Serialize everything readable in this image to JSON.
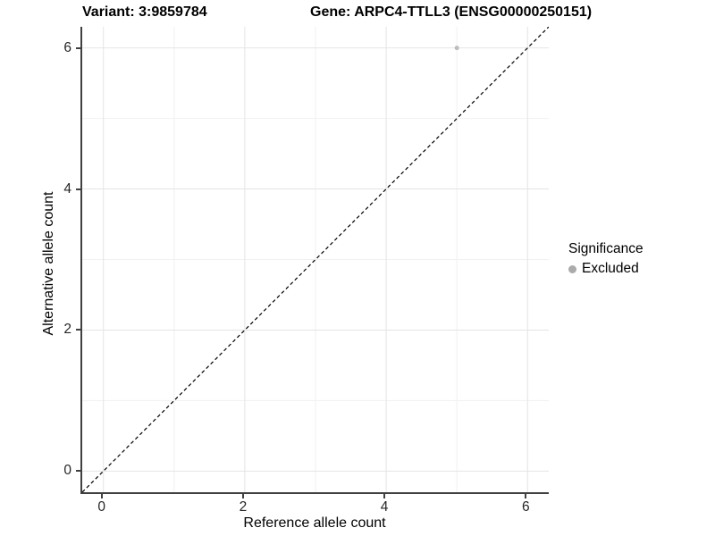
{
  "chart_data": {
    "type": "scatter",
    "title_left": "Variant: 3:9859784",
    "title_right": "Gene: ARPC4-TTLL3 (ENSG00000250151)",
    "xlabel": "Reference allele count",
    "ylabel": "Alternative allele count",
    "xlim": [
      -0.3,
      6.3
    ],
    "ylim": [
      -0.3,
      6.3
    ],
    "major_ticks": [
      0,
      2,
      4,
      6
    ],
    "minor_ticks": [
      1,
      3,
      5
    ],
    "grid": true,
    "identity_line": {
      "style": "dashed",
      "from": [
        -0.3,
        -0.3
      ],
      "to": [
        6.3,
        6.3
      ],
      "color": "#000000"
    },
    "series": [
      {
        "name": "Excluded",
        "points": [
          [
            5,
            6
          ]
        ],
        "color": "#bdbdbd",
        "radius": 2.5
      }
    ],
    "legend": {
      "position": "right",
      "title": "Significance",
      "entries": [
        {
          "label": "Excluded",
          "color": "#ababab"
        }
      ]
    },
    "colors": {
      "grid_major": "#e4e4e4",
      "grid_minor": "#f1f1f1",
      "axis_line": "#404040",
      "point": "#bdbdbd",
      "legend_point": "#ababab",
      "background": "#ffffff"
    }
  }
}
